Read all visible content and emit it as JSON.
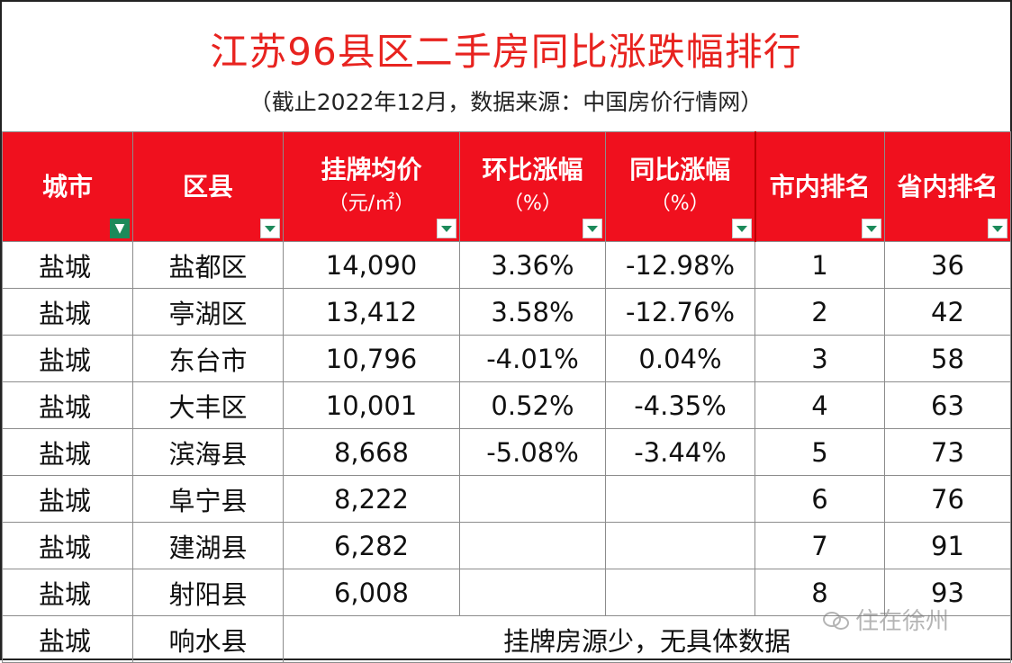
{
  "title": "江苏96县区二手房同比涨跌幅排行",
  "subtitle": "（截止2022年12月，数据来源：中国房价行情网）",
  "columns": [
    {
      "label": "城市",
      "unit": ""
    },
    {
      "label": "区县",
      "unit": ""
    },
    {
      "label": "挂牌均价",
      "unit": "（元/㎡）"
    },
    {
      "label": "环比涨幅",
      "unit": "（%）"
    },
    {
      "label": "同比涨幅",
      "unit": "（%）"
    },
    {
      "label": "市内排名",
      "unit": ""
    },
    {
      "label": "省内排名",
      "unit": ""
    }
  ],
  "rows": [
    {
      "city": "盐城",
      "district": "盐都区",
      "price": "14,090",
      "mom": "3.36%",
      "yoy": "-12.98%",
      "city_rank": "1",
      "prov_rank": "36"
    },
    {
      "city": "盐城",
      "district": "亭湖区",
      "price": "13,412",
      "mom": "3.58%",
      "yoy": "-12.76%",
      "city_rank": "2",
      "prov_rank": "42"
    },
    {
      "city": "盐城",
      "district": "东台市",
      "price": "10,796",
      "mom": "-4.01%",
      "yoy": "0.04%",
      "city_rank": "3",
      "prov_rank": "58"
    },
    {
      "city": "盐城",
      "district": "大丰区",
      "price": "10,001",
      "mom": "0.52%",
      "yoy": "-4.35%",
      "city_rank": "4",
      "prov_rank": "63"
    },
    {
      "city": "盐城",
      "district": "滨海县",
      "price": "8,668",
      "mom": "-5.08%",
      "yoy": "-3.44%",
      "city_rank": "5",
      "prov_rank": "73"
    },
    {
      "city": "盐城",
      "district": "阜宁县",
      "price": "8,222",
      "mom": "",
      "yoy": "",
      "city_rank": "6",
      "prov_rank": "76"
    },
    {
      "city": "盐城",
      "district": "建湖县",
      "price": "6,282",
      "mom": "",
      "yoy": "",
      "city_rank": "7",
      "prov_rank": "91"
    },
    {
      "city": "盐城",
      "district": "射阳县",
      "price": "6,008",
      "mom": "",
      "yoy": "",
      "city_rank": "8",
      "prov_rank": "93"
    }
  ],
  "last_row": {
    "city": "盐城",
    "district": "响水县",
    "note": "挂牌房源少，无具体数据"
  },
  "watermark": "住在徐州",
  "colors": {
    "title": "#e8231f",
    "header_bg": "#f0101e",
    "negative": "#1fa54e"
  }
}
